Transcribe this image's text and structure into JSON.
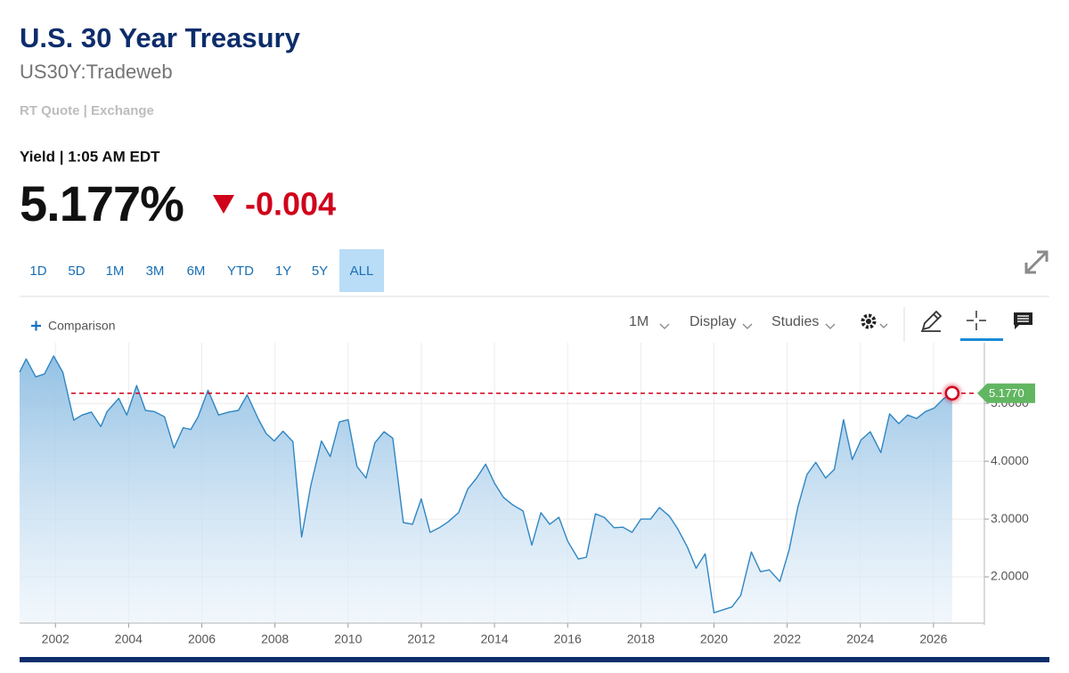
{
  "header": {
    "title": "U.S. 30 Year Treasury",
    "symbol": "US30Y:Tradeweb",
    "quote_source": "RT Quote | Exchange",
    "quote_time": "Yield | 1:05 AM EDT",
    "last": "5.177%",
    "change": "-0.004"
  },
  "range_buttons": [
    {
      "label": "1D",
      "active": false
    },
    {
      "label": "5D",
      "active": false
    },
    {
      "label": "1M",
      "active": false
    },
    {
      "label": "3M",
      "active": false
    },
    {
      "label": "6M",
      "active": false
    },
    {
      "label": "YTD",
      "active": false
    },
    {
      "label": "1Y",
      "active": false
    },
    {
      "label": "5Y",
      "active": false
    },
    {
      "label": "ALL",
      "active": true
    }
  ],
  "toolbar": {
    "comparison": "Comparison",
    "interval": "1M",
    "display": "Display",
    "studies": "Studies"
  },
  "chart_data": {
    "type": "area",
    "x": [
      2001.02,
      2001.2,
      2001.46,
      2001.7,
      2001.95,
      2002.2,
      2002.5,
      2002.73,
      2002.98,
      2003.24,
      2003.41,
      2003.73,
      2003.95,
      2004.22,
      2004.46,
      2004.7,
      2004.98,
      2005.24,
      2005.49,
      2005.7,
      2005.9,
      2006.17,
      2006.46,
      2006.73,
      2007.0,
      2007.24,
      2007.56,
      2007.76,
      2007.98,
      2008.22,
      2008.49,
      2008.73,
      2008.98,
      2009.27,
      2009.51,
      2009.76,
      2010.0,
      2010.24,
      2010.49,
      2010.73,
      2010.98,
      2011.22,
      2011.51,
      2011.76,
      2012.0,
      2012.24,
      2012.49,
      2012.73,
      2013.02,
      2013.27,
      2013.51,
      2013.76,
      2014.0,
      2014.24,
      2014.49,
      2014.78,
      2015.02,
      2015.27,
      2015.51,
      2015.76,
      2016.0,
      2016.29,
      2016.51,
      2016.76,
      2017.0,
      2017.27,
      2017.51,
      2017.76,
      2018.0,
      2018.27,
      2018.51,
      2018.78,
      2019.02,
      2019.27,
      2019.51,
      2019.76,
      2020.0,
      2020.24,
      2020.49,
      2020.73,
      2021.02,
      2021.27,
      2021.51,
      2021.8,
      2022.05,
      2022.29,
      2022.54,
      2022.78,
      2023.05,
      2023.29,
      2023.54,
      2023.78,
      2024.02,
      2024.27,
      2024.56,
      2024.8,
      2025.05,
      2025.29,
      2025.54,
      2025.78,
      2026.02,
      2026.27,
      2026.51
    ],
    "series": [
      {
        "name": "US30Y",
        "color": "#2f86c3",
        "values": [
          5.54,
          5.77,
          5.46,
          5.51,
          5.82,
          5.54,
          4.71,
          4.8,
          4.85,
          4.6,
          4.86,
          5.09,
          4.8,
          5.31,
          4.88,
          4.86,
          4.77,
          4.23,
          4.58,
          4.55,
          4.77,
          5.23,
          4.8,
          4.85,
          4.88,
          5.15,
          4.71,
          4.48,
          4.35,
          4.52,
          4.34,
          2.69,
          3.58,
          4.35,
          4.08,
          4.68,
          4.72,
          3.91,
          3.71,
          4.32,
          4.51,
          4.4,
          2.94,
          2.91,
          3.35,
          2.77,
          2.85,
          2.95,
          3.11,
          3.52,
          3.71,
          3.95,
          3.62,
          3.38,
          3.25,
          3.14,
          2.55,
          3.11,
          2.91,
          3.03,
          2.62,
          2.31,
          2.34,
          3.09,
          3.03,
          2.85,
          2.86,
          2.77,
          3.0,
          3.0,
          3.2,
          3.05,
          2.82,
          2.52,
          2.15,
          2.4,
          1.38,
          1.43,
          1.48,
          1.68,
          2.43,
          2.09,
          2.12,
          1.92,
          2.46,
          3.2,
          3.77,
          3.98,
          3.71,
          3.86,
          4.72,
          4.03,
          4.37,
          4.51,
          4.15,
          4.82,
          4.65,
          4.8,
          4.74,
          4.86,
          4.92,
          5.08,
          5.177
        ]
      }
    ],
    "xlim": [
      2001.02,
      2027.39
    ],
    "xticks": [
      2002,
      2004,
      2006,
      2008,
      2010,
      2012,
      2014,
      2016,
      2018,
      2020,
      2022,
      2024,
      2026
    ],
    "ylim": [
      1.2,
      6.05
    ],
    "yticks": [
      {
        "value": 2,
        "label": "2.0000"
      },
      {
        "value": 3,
        "label": "3.0000"
      },
      {
        "value": 4,
        "label": "4.0000"
      },
      {
        "value": 5,
        "label": "5.0000"
      }
    ],
    "reference_line": {
      "value": 5.177,
      "label": "5.1770",
      "color": "#d0021b",
      "tag_color": "#62b662"
    },
    "grid": true
  }
}
